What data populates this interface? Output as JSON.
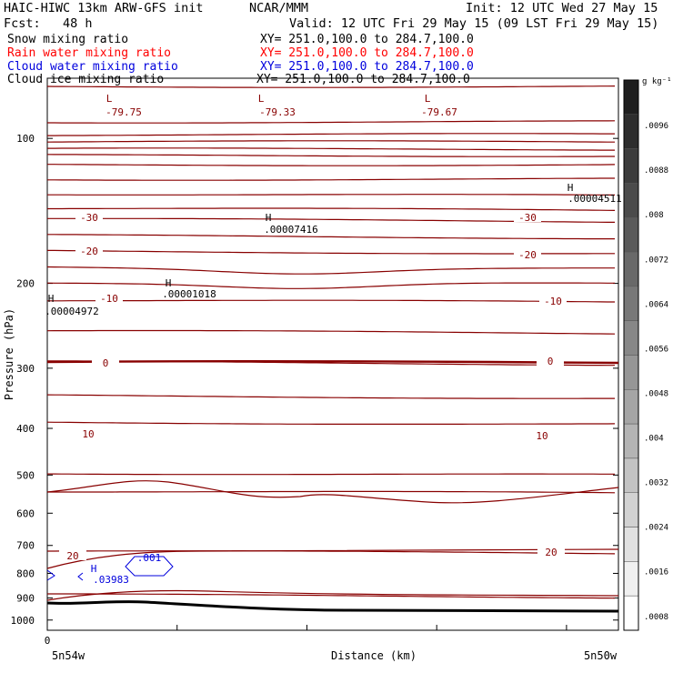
{
  "header": {
    "model": "HAIC-HIWC 13km ARW-GFS init",
    "org": "NCAR/MMM",
    "init": "Init: 12 UTC Wed 27 May 15",
    "fcst": "Fcst:   48 h",
    "valid": "Valid: 12 UTC Fri 29 May 15 (09 LST Fri 29 May 15)"
  },
  "fields": [
    {
      "name": "Snow mixing ratio",
      "xy": "XY= 251.0,100.0 to 284.7,100.0",
      "color": "#000000"
    },
    {
      "name": "Rain water mixing ratio",
      "xy": "XY= 251.0,100.0 to 284.7,100.0",
      "color": "#ff0000"
    },
    {
      "name": "Cloud water mixing ratio",
      "xy": "XY= 251.0,100.0 to 284.7,100.0",
      "color": "#0000dd"
    },
    {
      "name": "Cloud ice mixing ratio",
      "xy": "XY= 251.0,100.0 to 284.7,100.0",
      "color": "#000000"
    }
  ],
  "chart_data": {
    "type": "cross-section contour",
    "xlabel": "Distance (km)",
    "ylabel": "Pressure (hPa)",
    "y_axis": "log pressure, inverted",
    "ylim": [
      1050,
      75
    ],
    "yticks": [
      100,
      200,
      300,
      400,
      500,
      600,
      700,
      800,
      900,
      1000
    ],
    "x_start_tick": "0",
    "x_left_label": "5n54w",
    "x_right_label": "5n50w",
    "temperature_contours": [
      {
        "level": -30,
        "labels": [
          "-30",
          "-30"
        ]
      },
      {
        "level": -20,
        "labels": [
          "-20",
          "-20"
        ]
      },
      {
        "level": -10,
        "labels": [
          "-10",
          "-10"
        ]
      },
      {
        "level": 0,
        "labels": [
          "0",
          "0"
        ]
      },
      {
        "level": 10,
        "labels": [
          "10",
          "10"
        ]
      },
      {
        "level": 20,
        "labels": [
          "20",
          "20"
        ]
      }
    ],
    "extrema": [
      {
        "mark": "L",
        "value": "-79.75",
        "color": "#880000"
      },
      {
        "mark": "L",
        "value": "-79.33",
        "color": "#880000"
      },
      {
        "mark": "L",
        "value": "-79.67",
        "color": "#880000"
      },
      {
        "mark": "H",
        "value": ".00004511",
        "color": "#000000"
      },
      {
        "mark": "H",
        "value": ".00007416",
        "color": "#000000"
      },
      {
        "mark": "H",
        "value": ".00001018",
        "color": "#000000"
      },
      {
        "mark": "H",
        "value": ".00004972",
        "color": "#000000"
      },
      {
        "mark": "H",
        "value": ".03983",
        "color": "#0000dd"
      }
    ],
    "cloud_water_contour_label": ".001",
    "colorbar": {
      "units": "g kg⁻¹",
      "ticks": [
        ".0096",
        ".0088",
        ".008",
        ".0072",
        ".0064",
        ".0056",
        ".0048",
        ".004",
        ".0032",
        ".0024",
        ".0016",
        ".0008"
      ]
    },
    "colors": {
      "temperature": "#880000",
      "terrain": "#000000",
      "cloud_water": "#0000dd"
    }
  }
}
